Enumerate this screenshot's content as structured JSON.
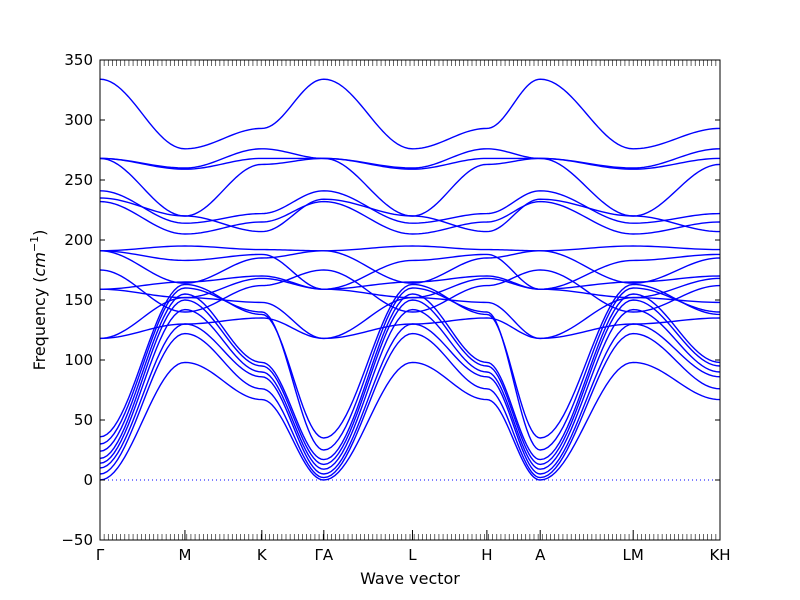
{
  "chart_data": {
    "type": "line",
    "title": "",
    "xlabel": "Wave vector",
    "ylabel": "Frequency",
    "ylabel_unit": "cm",
    "ylabel_unit_exponent": "−1",
    "ylim": [
      -50,
      350
    ],
    "yticks": [
      -50,
      0,
      50,
      100,
      150,
      200,
      250,
      300,
      350
    ],
    "grid": false,
    "legend": "none",
    "line_color": "#0000ff",
    "zero_line": {
      "y": 0,
      "style": "dotted",
      "color": "#0000ff"
    },
    "x_high_symmetry": [
      {
        "label": "Γ",
        "x": 0.0
      },
      {
        "label": "M",
        "x": 0.137
      },
      {
        "label": "K",
        "x": 0.261
      },
      {
        "label": "ΓA",
        "x": 0.361
      },
      {
        "label": "L",
        "x": 0.504
      },
      {
        "label": "H",
        "x": 0.624
      },
      {
        "label": "A",
        "x": 0.71
      },
      {
        "label": "LM",
        "x": 0.86
      },
      {
        "label": "KH",
        "x": 1.0
      }
    ],
    "x": [
      0.0,
      0.137,
      0.261,
      0.361,
      0.504,
      0.624,
      0.71,
      0.86,
      1.0
    ],
    "series": [
      {
        "values": [
          0,
          98,
          67,
          0,
          98,
          67,
          0,
          98,
          67
        ]
      },
      {
        "values": [
          5,
          122,
          76,
          2,
          122,
          76,
          2,
          122,
          76
        ]
      },
      {
        "values": [
          10,
          130,
          86,
          5,
          130,
          86,
          5,
          130,
          86
        ]
      },
      {
        "values": [
          14,
          142,
          90,
          9,
          142,
          90,
          9,
          142,
          90
        ]
      },
      {
        "values": [
          18,
          150,
          95,
          13,
          150,
          95,
          13,
          150,
          95
        ]
      },
      {
        "values": [
          24,
          155,
          98,
          17,
          155,
          98,
          17,
          155,
          98
        ]
      },
      {
        "values": [
          30,
          160,
          140,
          25,
          160,
          140,
          25,
          160,
          140
        ]
      },
      {
        "values": [
          36,
          163,
          138,
          35,
          163,
          138,
          35,
          163,
          138
        ]
      },
      {
        "values": [
          118,
          130,
          135,
          118,
          130,
          135,
          118,
          130,
          135
        ]
      },
      {
        "values": [
          118,
          152,
          148,
          118,
          152,
          148,
          118,
          152,
          148
        ]
      },
      {
        "values": [
          159,
          152,
          168,
          159,
          152,
          168,
          159,
          152,
          168
        ]
      },
      {
        "values": [
          159,
          165,
          170,
          159,
          165,
          170,
          159,
          165,
          170
        ]
      },
      {
        "values": [
          175,
          140,
          162,
          175,
          140,
          162,
          175,
          140,
          162
        ]
      },
      {
        "values": [
          191,
          183,
          188,
          159,
          183,
          188,
          159,
          183,
          188
        ]
      },
      {
        "values": [
          191,
          195,
          192,
          191,
          195,
          192,
          191,
          195,
          192
        ]
      },
      {
        "values": [
          191,
          164,
          185,
          191,
          164,
          185,
          191,
          164,
          185
        ]
      },
      {
        "values": [
          232,
          205,
          215,
          232,
          205,
          215,
          232,
          205,
          215
        ]
      },
      {
        "values": [
          235,
          220,
          207,
          234,
          220,
          207,
          234,
          220,
          207
        ]
      },
      {
        "values": [
          241,
          214,
          222,
          241,
          214,
          222,
          241,
          214,
          222
        ]
      },
      {
        "values": [
          268,
          220,
          263,
          268,
          220,
          263,
          268,
          220,
          263
        ]
      },
      {
        "values": [
          268,
          259,
          268,
          268,
          259,
          268,
          268,
          259,
          268
        ]
      },
      {
        "values": [
          268,
          260,
          276,
          268,
          260,
          276,
          268,
          260,
          276
        ]
      },
      {
        "values": [
          334,
          276,
          293,
          334,
          276,
          293,
          334,
          276,
          293
        ]
      }
    ]
  }
}
